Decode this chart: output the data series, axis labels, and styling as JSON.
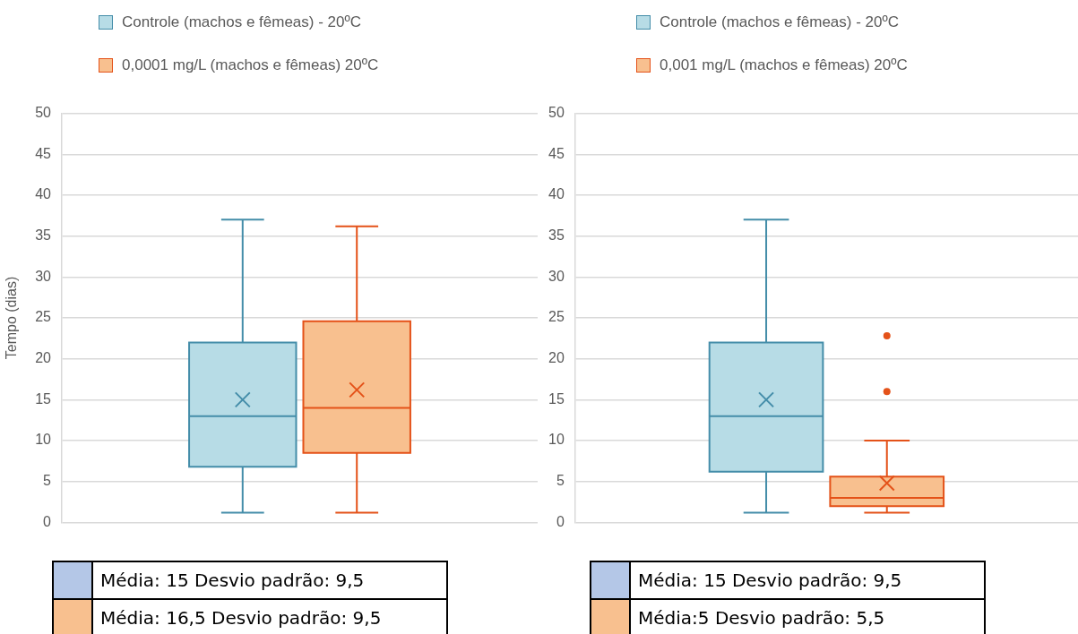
{
  "chart_data": [
    {
      "type": "box",
      "categories": [
        null
      ],
      "ylabel": "Tempo (dias)",
      "ylim": [
        0,
        50
      ],
      "yticks": [
        0,
        5,
        10,
        15,
        20,
        25,
        30,
        35,
        40,
        45,
        50
      ],
      "grid": "y",
      "legend": "top",
      "series": [
        {
          "name": "Controle (machos e fêmeas) - 20ºC",
          "color": "#b7dce6",
          "boxes": [
            {
              "low": 1.2,
              "q1": 6.8,
              "median": 13,
              "q3": 22,
              "high": 37,
              "mean": 15
            }
          ]
        },
        {
          "name": "0,0001 mg/L (machos e fêmeas) 20ºC",
          "color": "#f8c08f",
          "boxes": [
            {
              "low": 1.2,
              "q1": 8.5,
              "median": 14,
              "q3": 24.6,
              "high": 36.2,
              "mean": 16.2
            }
          ]
        }
      ],
      "annotations": [
        "Média: 15 Desvio padrão: 9,5",
        "Média: 16,5 Desvio padrão: 9,5"
      ]
    },
    {
      "type": "box",
      "categories": [
        null
      ],
      "ylim": [
        0,
        50
      ],
      "yticks": [
        0,
        5,
        10,
        15,
        20,
        25,
        30,
        35,
        40,
        45,
        50
      ],
      "grid": "y",
      "legend": "top",
      "series": [
        {
          "name": "Controle (machos e fêmeas) - 20ºC",
          "color": "#b7dce6",
          "boxes": [
            {
              "low": 1.2,
              "q1": 6.2,
              "median": 13,
              "q3": 22,
              "high": 37,
              "mean": 15
            }
          ]
        },
        {
          "name": "0,001 mg/L (machos e fêmeas) 20ºC",
          "color": "#f8c08f",
          "boxes": [
            {
              "low": 1.2,
              "q1": 2,
              "median": 3,
              "q3": 5.6,
              "high": 10,
              "mean": 4.8,
              "outliers": [
                16,
                22.8
              ]
            }
          ]
        }
      ],
      "annotations": [
        "Média: 15 Desvio padrão: 9,5",
        "Média:5 Desvio padrão: 5,5"
      ]
    }
  ]
}
